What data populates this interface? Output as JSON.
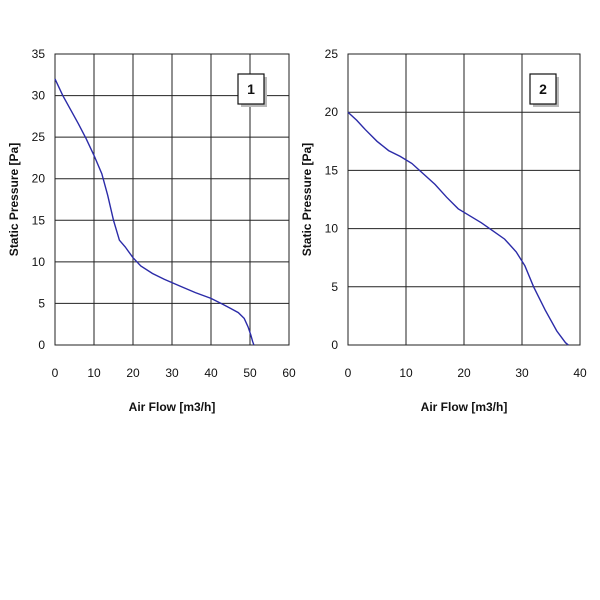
{
  "colors": {
    "curve": "#2b2ba8",
    "grid": "#222222",
    "badge_shadow": "#b9b9b9"
  },
  "chart_data": [
    {
      "type": "line",
      "badge": "1",
      "xlabel": "Air Flow [m3/h]",
      "ylabel": "Static  Pressure  [Pa]",
      "xlim": [
        0,
        60
      ],
      "ylim": [
        0,
        35
      ],
      "xticks": [
        0,
        10,
        20,
        30,
        40,
        50,
        60
      ],
      "yticks": [
        0,
        5,
        10,
        15,
        20,
        25,
        30,
        35
      ],
      "grid": true,
      "series": [
        {
          "x": [
            0,
            2,
            4,
            6,
            8,
            10,
            12,
            13.5,
            15,
            16.5,
            18,
            20,
            22,
            25,
            28,
            32,
            36,
            40,
            43,
            45,
            47,
            48.5,
            49.5,
            50.2,
            50.7,
            51
          ],
          "y": [
            32,
            30,
            28.3,
            26.6,
            24.8,
            22.8,
            20.6,
            18,
            15,
            12.6,
            11.8,
            10.5,
            9.5,
            8.6,
            7.9,
            7.1,
            6.3,
            5.6,
            4.9,
            4.4,
            3.9,
            3.2,
            2.2,
            1.2,
            0.4,
            0
          ]
        }
      ]
    },
    {
      "type": "line",
      "badge": "2",
      "xlabel": "Air Flow [m3/h]",
      "ylabel": "Static  Pressure  [Pa]",
      "xlim": [
        0,
        40
      ],
      "ylim": [
        0,
        25
      ],
      "xticks": [
        0,
        10,
        20,
        30,
        40
      ],
      "yticks": [
        0,
        5,
        10,
        15,
        20,
        25
      ],
      "grid": true,
      "series": [
        {
          "x": [
            0,
            1.5,
            3,
            5,
            7,
            9,
            11,
            13,
            15,
            17,
            19,
            21,
            23,
            25,
            27,
            29,
            30.5,
            32,
            34,
            36,
            37.5,
            38
          ],
          "y": [
            20,
            19.3,
            18.5,
            17.5,
            16.7,
            16.2,
            15.6,
            14.7,
            13.8,
            12.7,
            11.7,
            11.1,
            10.5,
            9.8,
            9.1,
            8,
            6.8,
            5,
            3,
            1.2,
            0.2,
            0
          ]
        }
      ]
    }
  ]
}
